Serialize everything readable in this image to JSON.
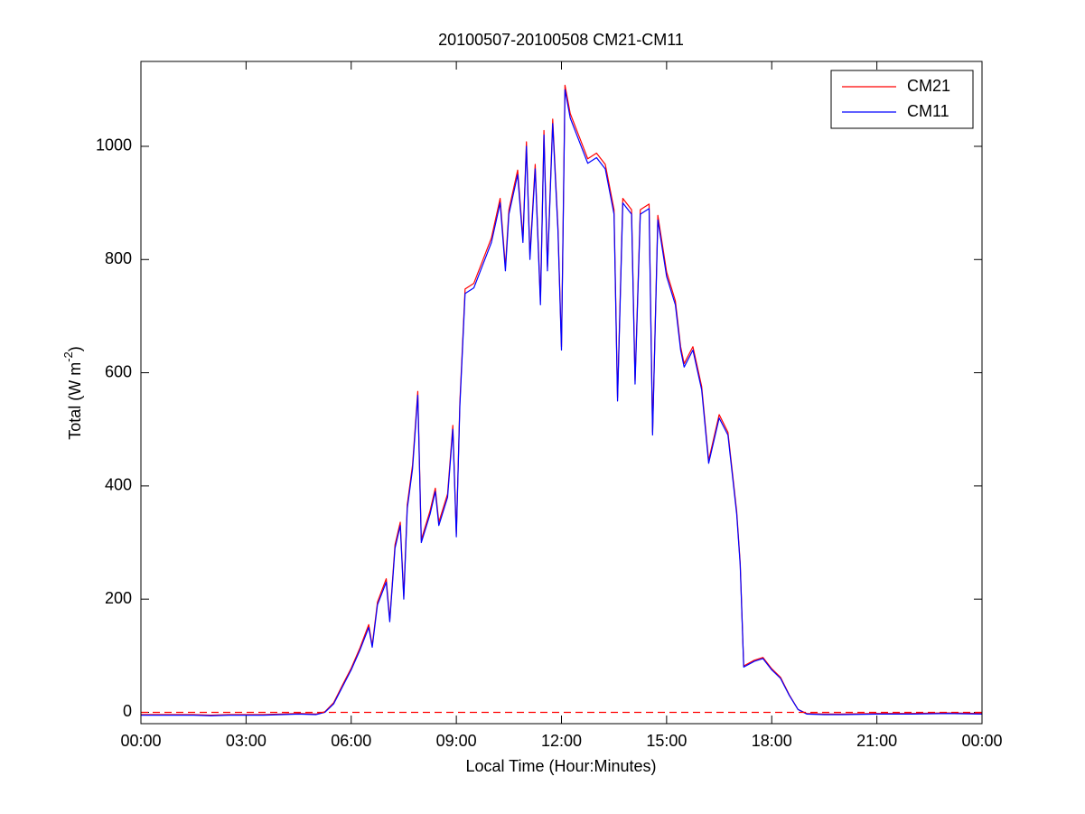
{
  "chart_data": {
    "type": "line",
    "title": "20100507-20100508 CM21-CM11",
    "xlabel": "Local Time (Hour:Minutes)",
    "ylabel": {
      "text": "Total (W m",
      "superscript": "-2",
      "suffix": ")"
    },
    "xlim": [
      0,
      24
    ],
    "ylim": [
      -20,
      1150
    ],
    "xticks": [
      {
        "value": 0,
        "label": "00:00"
      },
      {
        "value": 3,
        "label": "03:00"
      },
      {
        "value": 6,
        "label": "06:00"
      },
      {
        "value": 9,
        "label": "09:00"
      },
      {
        "value": 12,
        "label": "12:00"
      },
      {
        "value": 15,
        "label": "15:00"
      },
      {
        "value": 18,
        "label": "18:00"
      },
      {
        "value": 21,
        "label": "21:00"
      },
      {
        "value": 24,
        "label": "00:00"
      }
    ],
    "yticks": [
      0,
      200,
      400,
      600,
      800,
      1000
    ],
    "grid": false,
    "legend": "northeast",
    "reference_line": {
      "value": 0,
      "color": "#ff0000",
      "style": "dashed"
    },
    "x": [
      0,
      0.5,
      1,
      1.5,
      2,
      2.5,
      3,
      3.5,
      4,
      4.5,
      5,
      5.25,
      5.5,
      5.75,
      6,
      6.25,
      6.5,
      6.6,
      6.75,
      7,
      7.1,
      7.25,
      7.4,
      7.5,
      7.6,
      7.75,
      7.9,
      8,
      8.25,
      8.4,
      8.5,
      8.75,
      8.9,
      9,
      9.1,
      9.25,
      9.5,
      9.75,
      10,
      10.25,
      10.4,
      10.5,
      10.75,
      10.9,
      11,
      11.1,
      11.25,
      11.4,
      11.5,
      11.6,
      11.75,
      11.9,
      12,
      12.1,
      12.25,
      12.5,
      12.75,
      13,
      13.25,
      13.5,
      13.6,
      13.75,
      14,
      14.1,
      14.25,
      14.5,
      14.6,
      14.75,
      15,
      15.25,
      15.4,
      15.5,
      15.75,
      16,
      16.2,
      16.5,
      16.75,
      17,
      17.1,
      17.2,
      17.5,
      17.75,
      18,
      18.25,
      18.5,
      18.75,
      19,
      19.5,
      20,
      21,
      22,
      23,
      24
    ],
    "series": [
      {
        "name": "CM21",
        "color": "#ff0000",
        "values": [
          -4,
          -4,
          -4,
          -4,
          -5,
          -4,
          -4,
          -4,
          -3,
          -2,
          -3,
          1,
          17,
          48,
          78,
          114,
          155,
          118,
          195,
          236,
          164,
          296,
          336,
          205,
          367,
          437,
          567,
          305,
          356,
          396,
          336,
          386,
          507,
          315,
          547,
          748,
          758,
          798,
          838,
          908,
          787,
          888,
          958,
          837,
          1008,
          807,
          968,
          727,
          1028,
          787,
          1048,
          857,
          646,
          1108,
          1058,
          1018,
          978,
          988,
          968,
          888,
          556,
          908,
          888,
          586,
          888,
          898,
          495,
          878,
          778,
          727,
          646,
          616,
          646,
          576,
          445,
          526,
          495,
          355,
          264,
          82,
          92,
          97,
          77,
          62,
          31,
          5,
          -2,
          -3,
          -3,
          -2,
          -2,
          -1,
          -2
        ]
      },
      {
        "name": "CM11",
        "color": "#0000ff",
        "values": [
          -5,
          -5,
          -5,
          -5,
          -6,
          -5,
          -5,
          -5,
          -4,
          -3,
          -4,
          0,
          15,
          45,
          75,
          110,
          150,
          115,
          190,
          230,
          160,
          290,
          330,
          200,
          360,
          430,
          560,
          300,
          350,
          390,
          330,
          380,
          500,
          310,
          540,
          740,
          750,
          790,
          830,
          900,
          780,
          880,
          950,
          830,
          1000,
          800,
          960,
          720,
          1020,
          780,
          1040,
          850,
          640,
          1100,
          1050,
          1010,
          970,
          980,
          960,
          880,
          550,
          900,
          880,
          580,
          880,
          890,
          490,
          870,
          770,
          720,
          640,
          610,
          640,
          570,
          440,
          520,
          490,
          350,
          260,
          80,
          90,
          95,
          75,
          60,
          30,
          5,
          -3,
          -4,
          -4,
          -3,
          -3,
          -2,
          -3
        ]
      }
    ]
  }
}
